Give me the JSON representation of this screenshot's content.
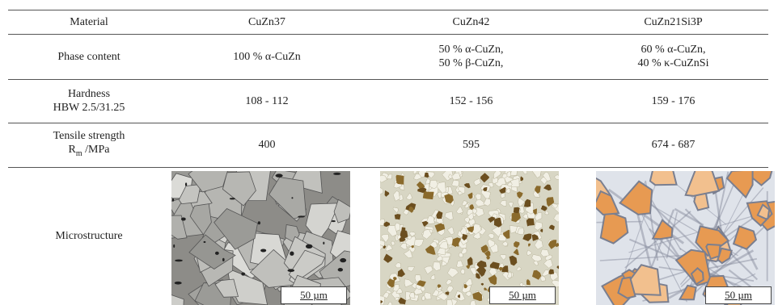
{
  "table": {
    "header": [
      "Material",
      "CuZn37",
      "CuZn42",
      "CuZn21Si3P"
    ],
    "rows": [
      {
        "label": [
          "Phase content"
        ],
        "cells": [
          [
            "100 % α-CuZn"
          ],
          [
            "50 % α-CuZn,",
            "50 % β-CuZn,"
          ],
          [
            "60 % α-CuZn,",
            "40 % κ-CuZnSi"
          ]
        ]
      },
      {
        "label": [
          "Hardness",
          "HBW 2.5/31.25"
        ],
        "cells": [
          [
            "108 - 112"
          ],
          [
            "152 - 156"
          ],
          [
            "159 - 176"
          ]
        ]
      },
      {
        "label": [
          "Tensile strength",
          {
            "base": "R",
            "sub": "m",
            "unit": " /MPa"
          }
        ],
        "cells": [
          [
            "400"
          ],
          [
            "595"
          ],
          [
            "674 - 687"
          ]
        ]
      },
      {
        "label": [
          "Microstructure"
        ],
        "scale_bars": [
          "50 µm",
          "50 µm",
          "50 µm"
        ]
      }
    ]
  }
}
